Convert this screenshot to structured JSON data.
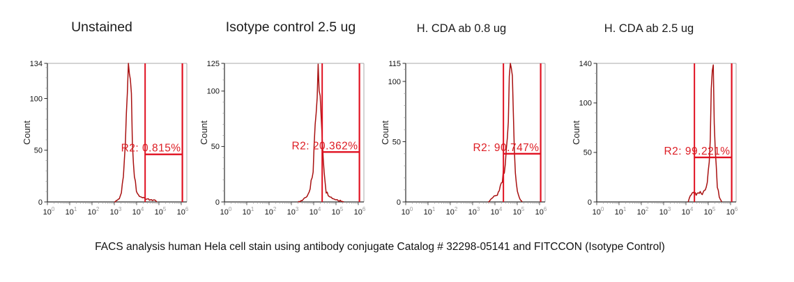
{
  "caption": "FACS analysis human Hela cell stain using antibody conjugate Catalog # 32298-05141 and FITCCON (Isotype Control)",
  "colors": {
    "histogram": "#a81010",
    "gate": "#e01020",
    "gate_label": "#dd1c23",
    "axis": "#2a2a2a",
    "frame": "#a8a8a8",
    "minor_tick": "#999999",
    "tick_label": "#111111",
    "superscript": "#999999",
    "ylabel": "#222222"
  },
  "chart_data": [
    {
      "type": "area",
      "title": "Unstained",
      "ylabel": "Count",
      "xlabel": "",
      "x_axis_scale": "log10",
      "xtick_exponents": [
        0,
        1,
        2,
        3,
        4,
        5,
        6
      ],
      "xlim_decades": [
        0,
        6.25
      ],
      "ymax": 134,
      "yticks": [
        0,
        50,
        100,
        134
      ],
      "grid": "off",
      "peak_center_decade": 3.66,
      "profile": [
        [
          3.0,
          0
        ],
        [
          3.15,
          2
        ],
        [
          3.3,
          6
        ],
        [
          3.42,
          25
        ],
        [
          3.52,
          70
        ],
        [
          3.6,
          115
        ],
        [
          3.66,
          134
        ],
        [
          3.72,
          122
        ],
        [
          3.8,
          70
        ],
        [
          3.88,
          30
        ],
        [
          3.98,
          12
        ],
        [
          4.1,
          6
        ],
        [
          4.25,
          4
        ],
        [
          4.4,
          3
        ],
        [
          4.6,
          2
        ],
        [
          4.85,
          1
        ],
        [
          4.9,
          0
        ]
      ],
      "gate": {
        "name": "R2",
        "label": "R2: 0.815%",
        "percent": 0.815,
        "left_decade": 4.38,
        "right_decade": 6.05,
        "line_count": 46
      }
    },
    {
      "type": "area",
      "title": "Isotype control 2.5 ug",
      "ylabel": "Count",
      "xlabel": "",
      "x_axis_scale": "log10",
      "xtick_exponents": [
        0,
        1,
        2,
        3,
        4,
        5,
        6
      ],
      "xlim_decades": [
        0,
        6.25
      ],
      "ymax": 125,
      "yticks": [
        0,
        50,
        100,
        125
      ],
      "grid": "off",
      "peak_center_decade": 4.22,
      "profile": [
        [
          3.3,
          0
        ],
        [
          3.5,
          2
        ],
        [
          3.7,
          5
        ],
        [
          3.85,
          12
        ],
        [
          4.0,
          35
        ],
        [
          4.1,
          80
        ],
        [
          4.18,
          118
        ],
        [
          4.22,
          125
        ],
        [
          4.28,
          112
        ],
        [
          4.35,
          70
        ],
        [
          4.45,
          28
        ],
        [
          4.55,
          10
        ],
        [
          4.7,
          4
        ],
        [
          4.9,
          2
        ],
        [
          5.2,
          1
        ],
        [
          5.35,
          0
        ]
      ],
      "gate": {
        "name": "R2",
        "label": "R2: 20.362%",
        "percent": 20.362,
        "left_decade": 4.38,
        "right_decade": 6.05,
        "line_count": 45
      }
    },
    {
      "type": "area",
      "title": "H. CDA ab 0.8 ug",
      "ylabel": "Count",
      "xlabel": "",
      "x_axis_scale": "log10",
      "xtick_exponents": [
        0,
        1,
        2,
        3,
        4,
        5,
        6
      ],
      "xlim_decades": [
        0,
        6.25
      ],
      "ymax": 115,
      "yticks": [
        0,
        50,
        100,
        115
      ],
      "grid": "off",
      "peak_center_decade": 4.72,
      "profile": [
        [
          3.7,
          0
        ],
        [
          3.85,
          3
        ],
        [
          4.0,
          5
        ],
        [
          4.15,
          8
        ],
        [
          4.3,
          16
        ],
        [
          4.45,
          30
        ],
        [
          4.55,
          55
        ],
        [
          4.65,
          98
        ],
        [
          4.72,
          115
        ],
        [
          4.78,
          95
        ],
        [
          4.85,
          55
        ],
        [
          4.92,
          22
        ],
        [
          5.0,
          8
        ],
        [
          5.1,
          3
        ],
        [
          5.22,
          0
        ]
      ],
      "gate": {
        "name": "R2",
        "label": "R2: 90.747%",
        "percent": 90.747,
        "left_decade": 4.38,
        "right_decade": 6.05,
        "line_count": 40
      }
    },
    {
      "type": "area",
      "title": "H. CDA ab 2.5 ug",
      "ylabel": "Count",
      "xlabel": "",
      "x_axis_scale": "log10",
      "xtick_exponents": [
        0,
        1,
        2,
        3,
        4,
        5,
        6
      ],
      "xlim_decades": [
        0,
        6.25
      ],
      "ymax": 140,
      "yticks": [
        0,
        50,
        100,
        140
      ],
      "grid": "off",
      "peak_center_decade": 5.2,
      "profile": [
        [
          4.1,
          0
        ],
        [
          4.2,
          7
        ],
        [
          4.3,
          9
        ],
        [
          4.45,
          8
        ],
        [
          4.6,
          10
        ],
        [
          4.75,
          9
        ],
        [
          4.85,
          12
        ],
        [
          4.95,
          18
        ],
        [
          5.05,
          45
        ],
        [
          5.12,
          95
        ],
        [
          5.18,
          140
        ],
        [
          5.24,
          115
        ],
        [
          5.32,
          55
        ],
        [
          5.4,
          18
        ],
        [
          5.5,
          5
        ],
        [
          5.6,
          0
        ]
      ],
      "gate": {
        "name": "R2",
        "label": "R2: 99.221%",
        "percent": 99.221,
        "left_decade": 4.38,
        "right_decade": 6.05,
        "line_count": 45
      }
    }
  ]
}
